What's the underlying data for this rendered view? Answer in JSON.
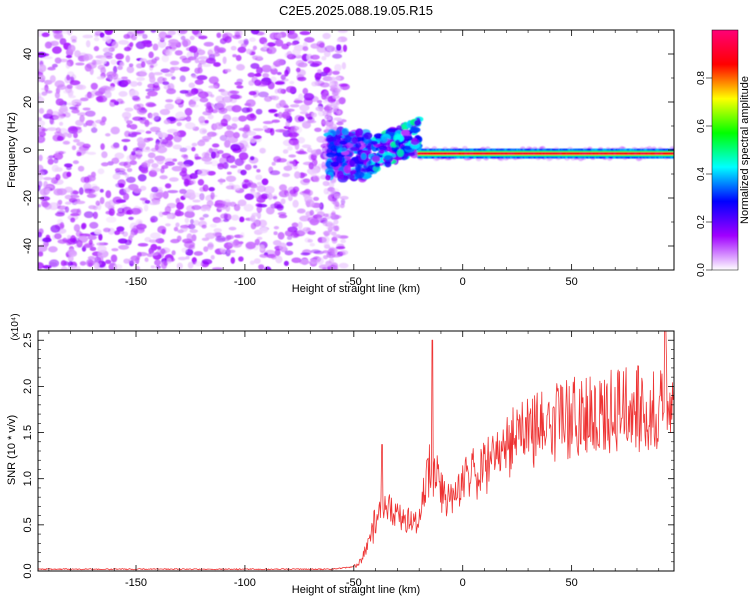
{
  "title": "C2E5.2025.088.19.05.R15",
  "chart_data": [
    {
      "type": "heatmap",
      "xlabel": "Height of straight line (km)",
      "ylabel": "Frequency (Hz)",
      "xlim": [
        -195,
        97
      ],
      "ylim": [
        -50,
        50
      ],
      "x_ticks": [
        -150,
        -100,
        -50,
        0,
        50
      ],
      "y_ticks": [
        -40,
        -20,
        0,
        20,
        40
      ],
      "grid": false,
      "colorbar": {
        "label": "Normalized spectral amplitude",
        "range": [
          0,
          1
        ],
        "ticks": [
          "0.0",
          "0.2",
          "0.4",
          "0.6",
          "0.8"
        ],
        "colormap": [
          "#ffffff",
          "#a000ff",
          "#0000ff",
          "#00ffff",
          "#00ff00",
          "#ffff00",
          "#ff0000",
          "#ff0077"
        ]
      },
      "regions": [
        {
          "x_range": [
            -195,
            -57
          ],
          "freq_range": [
            -50,
            50
          ],
          "amplitude": 0.15,
          "description_level": "broadband low"
        },
        {
          "x_range": [
            -63,
            -57
          ],
          "freq_range": [
            -50,
            30
          ],
          "amplitude": 0.08,
          "description_level": "fringe"
        },
        {
          "x_range": [
            -62,
            -42
          ],
          "freq_range": [
            -12,
            8
          ],
          "amplitude": 0.3
        },
        {
          "x_range": [
            -42,
            -20
          ],
          "freq_range": [
            -5,
            18
          ],
          "amplitude": 0.4
        },
        {
          "x_range": [
            -20,
            97
          ],
          "freq_range": [
            -3,
            3
          ],
          "amplitude": 0.9,
          "center_freq": -1.5
        }
      ]
    },
    {
      "type": "line",
      "xlabel": "Height of straight line (km)",
      "ylabel": "SNR (10 * v/v)",
      "y_multiplier": "(x10⁴)",
      "xlim": [
        -195,
        97
      ],
      "ylim": [
        0,
        2.6
      ],
      "x_ticks": [
        -150,
        -100,
        -50,
        0,
        50
      ],
      "y_ticks": [
        "0.0",
        "0.5",
        "1.0",
        "1.5",
        "2.0",
        "2.5"
      ],
      "color": "#ee3333",
      "grid": false,
      "series_profile": [
        {
          "x": -195,
          "y": 0.02
        },
        {
          "x": -60,
          "y": 0.02
        },
        {
          "x": -48,
          "y": 0.05
        },
        {
          "x": -42,
          "y": 0.3
        },
        {
          "x": -38,
          "y": 0.75
        },
        {
          "x": -30,
          "y": 0.6
        },
        {
          "x": -20,
          "y": 0.5
        },
        {
          "x": -16,
          "y": 1.1
        },
        {
          "x": -12,
          "y": 1.0
        },
        {
          "x": -8,
          "y": 0.75
        },
        {
          "x": 0,
          "y": 1.0
        },
        {
          "x": 10,
          "y": 1.1
        },
        {
          "x": 20,
          "y": 1.35
        },
        {
          "x": 40,
          "y": 1.6
        },
        {
          "x": 60,
          "y": 1.7
        },
        {
          "x": 80,
          "y": 1.75
        },
        {
          "x": 97,
          "y": 1.75
        }
      ],
      "peaks": [
        {
          "x": -37,
          "y": 1.37
        },
        {
          "x": -14,
          "y": 2.5
        },
        {
          "x": 93,
          "y": 2.6
        }
      ]
    }
  ]
}
